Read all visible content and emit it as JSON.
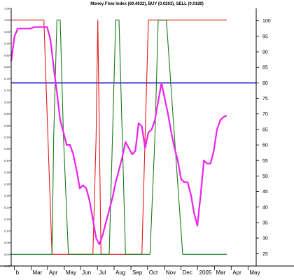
{
  "chart_data": {
    "type": "line",
    "title": "Money Flow Index (69.4832), BUY (0.0263), SELL (0.0189)",
    "x_labels": [
      "b",
      "Mar",
      "Apr",
      "May",
      "Jun",
      "Jul",
      "Aug",
      "Sep",
      "Oct",
      "Nov",
      "Dec",
      "2005",
      "Mar",
      "Apr",
      "May"
    ],
    "x_label_positions": [
      2,
      12.2,
      22.2,
      32.5,
      42.5,
      52.8,
      63,
      73.3,
      83.5,
      93.8,
      104,
      114.2,
      124.5,
      134.7,
      145
    ],
    "left_axis": {
      "ylim": [
        -0.05,
        1.05
      ],
      "ticks": [
        -0.05,
        0,
        0.05,
        0.1,
        0.15,
        0.2,
        0.25,
        0.3,
        0.35,
        0.4,
        0.45,
        0.5,
        0.55,
        0.6,
        0.65,
        0.7,
        0.75,
        0.8,
        0.85,
        0.9,
        0.95,
        1.0,
        1.05
      ],
      "tick_labels": [
        "-0.05",
        "0.00",
        "0.05",
        "0.10",
        "0.15",
        "0.20",
        "0.25",
        "0.30",
        "0.35",
        "0.40",
        "0.45",
        "0.50",
        "0.55",
        "0.60",
        "0.65",
        "0.70",
        "0.75",
        "0.80",
        "0.85",
        "0.90",
        "0.95",
        "1.00",
        "1.05"
      ]
    },
    "right_axis": {
      "ylim": [
        21,
        104
      ],
      "ticks": [
        25,
        30,
        35,
        40,
        45,
        50,
        55,
        60,
        65,
        70,
        75,
        80,
        85,
        90,
        95,
        100
      ],
      "tick_labels": [
        "25",
        "30",
        "35",
        "40",
        "45",
        "50",
        "55",
        "60",
        "65",
        "70",
        "75",
        "80",
        "85",
        "90",
        "95",
        "100"
      ]
    },
    "reference_line": {
      "axis": "right",
      "value": 80,
      "color": "#1010c8"
    },
    "series": [
      {
        "axis": "right",
        "color": "#ee22ee",
        "x": [
          0,
          2,
          4,
          6,
          8,
          10,
          12,
          14,
          16,
          18,
          20,
          22,
          24,
          26,
          28,
          30,
          32,
          34,
          36,
          38,
          40,
          42,
          44,
          46,
          48,
          50,
          52,
          54,
          56,
          58,
          60,
          62,
          64,
          66,
          68,
          70,
          72,
          74,
          76,
          78,
          80,
          82,
          84,
          86,
          88,
          90,
          92,
          94,
          96,
          98,
          100,
          102,
          104,
          106,
          108,
          110,
          112,
          114,
          116,
          118,
          120,
          122,
          124,
          126,
          128,
          130,
          132
        ],
        "y": [
          87,
          95,
          97.5,
          97.5,
          97.5,
          97.5,
          97.5,
          98,
          98,
          98,
          98,
          98,
          94,
          85,
          77,
          68,
          64,
          60,
          60,
          57,
          52,
          46,
          47,
          46,
          42,
          36,
          30,
          28,
          31,
          35,
          39,
          43,
          48,
          52,
          56,
          61,
          59,
          57,
          58,
          67,
          66,
          59,
          64,
          65,
          68,
          74,
          80,
          75,
          70,
          64,
          59,
          55,
          49,
          48,
          48,
          44,
          38,
          34,
          44,
          55,
          54,
          54,
          58,
          65,
          68,
          69,
          69.5
        ]
      },
      {
        "axis": "left",
        "color": "#e31a1a",
        "x": [
          0,
          5,
          10,
          15,
          20,
          22,
          25,
          30,
          35,
          40,
          45,
          50,
          52,
          53,
          54,
          55,
          60,
          65,
          70,
          75,
          80,
          82,
          84,
          90,
          95,
          100,
          105,
          110,
          115,
          120,
          125,
          130,
          132
        ],
        "y": [
          1.0,
          1.0,
          1.0,
          1.0,
          1.0,
          0.6,
          0.0,
          0.0,
          0.0,
          0.0,
          0.0,
          0.0,
          0.5,
          1.0,
          0.5,
          0.0,
          0.0,
          0.0,
          0.0,
          0.0,
          0.0,
          0.5,
          1.0,
          1.0,
          1.0,
          1.0,
          1.0,
          1.0,
          1.0,
          1.0,
          1.0,
          1.0,
          1.0
        ]
      },
      {
        "axis": "left",
        "color": "#1a7a1a",
        "x": [
          0,
          5,
          10,
          15,
          20,
          25,
          26,
          28,
          30,
          32,
          35,
          40,
          45,
          50,
          55,
          60,
          62,
          64,
          66,
          68,
          70,
          75,
          80,
          85,
          88,
          90,
          95,
          100,
          105,
          110,
          115,
          120,
          125,
          130,
          132
        ],
        "y": [
          0.0,
          0.0,
          0.0,
          0.0,
          0.0,
          0.0,
          0.5,
          1.0,
          1.0,
          0.5,
          0.0,
          0.0,
          0.0,
          0.0,
          0.0,
          0.0,
          0.5,
          1.0,
          1.0,
          0.5,
          0.0,
          0.0,
          0.0,
          0.0,
          0.5,
          1.0,
          1.0,
          0.5,
          0.0,
          0.0,
          0.0,
          0.0,
          0.0,
          0.0,
          0.0
        ]
      }
    ],
    "grid": false,
    "legend": "none"
  }
}
